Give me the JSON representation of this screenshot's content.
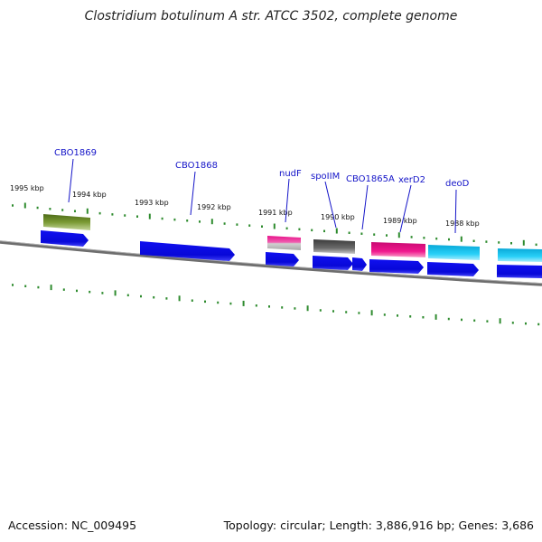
{
  "title": "Clostridium botulinum A str. ATCC 3502, complete genome",
  "footer": {
    "accession": "Accession: NC_009495",
    "topology": "Topology: circular; Length: 3,886,916 bp; Genes: 3,686"
  },
  "colors": {
    "backbone": "#7a7a7a",
    "ticks": "#2e8b2e",
    "gene_label": "#1414c8",
    "cds_blue": "#0a0ae8",
    "olive": "#6b8e23",
    "magenta": "#e8108a",
    "gray": "#5a5a5a",
    "cyan": "#1ec8f0"
  },
  "kbp_labels": [
    "1995 kbp",
    "1994 kbp",
    "1993 kbp",
    "1992 kbp",
    "1991 kbp",
    "1990 kbp",
    "1989 kbp",
    "1988 kbp"
  ],
  "gene_labels": [
    "CBO1869",
    "CBO1868",
    "nudF",
    "spoIIM",
    "CBO1865A",
    "xerD2",
    "deoD"
  ]
}
